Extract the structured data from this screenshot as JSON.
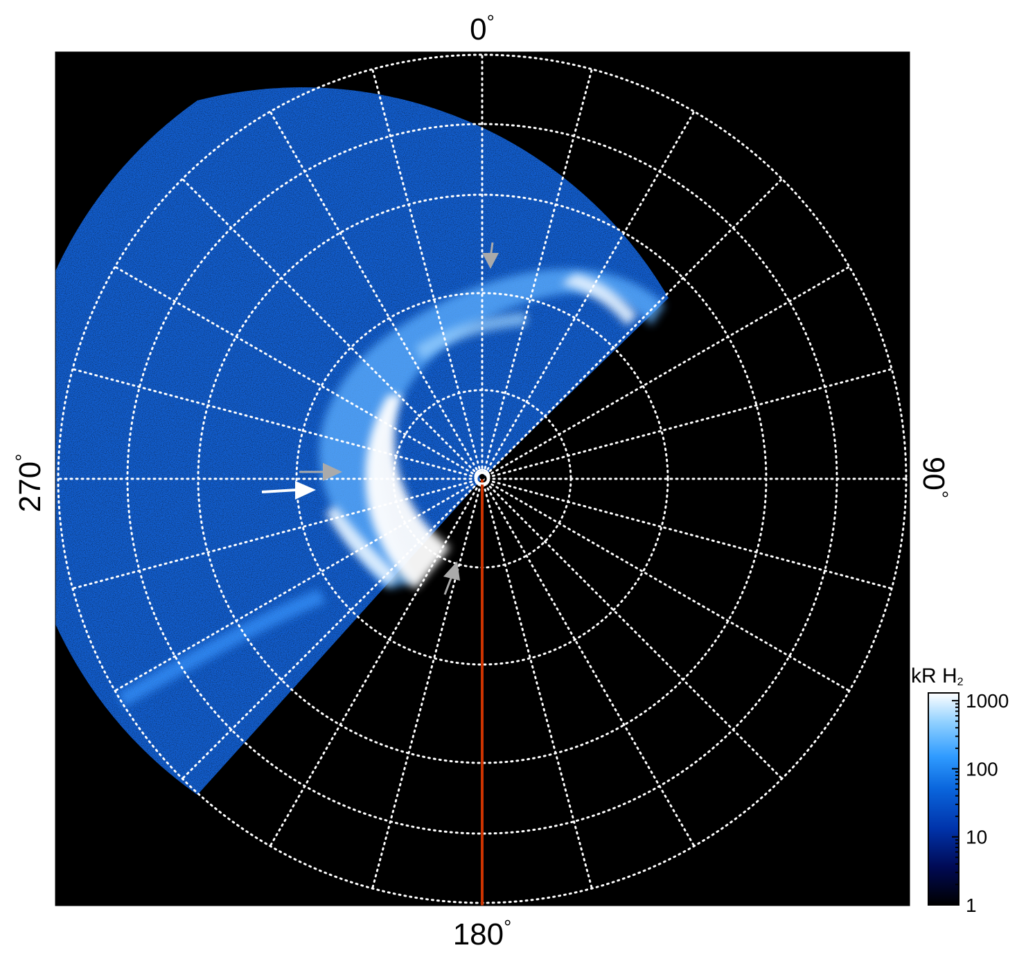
{
  "polar_labels": {
    "top": "0",
    "right": "90",
    "bottom": "180",
    "left": "270",
    "degree_symbol": "°"
  },
  "colorbar": {
    "title_main": "kR H",
    "title_sub": "2",
    "ticks": [
      "1000",
      "100",
      "10",
      "1"
    ],
    "tick_values": [
      1000,
      100,
      10,
      1
    ],
    "scale": "log",
    "colors": [
      "#000000",
      "#000a55",
      "#0033aa",
      "#0a66dd",
      "#2f9bff",
      "#8fd0ff",
      "#ffffff"
    ]
  },
  "plot": {
    "background": "#000000",
    "grid_color": "#ffffff",
    "meridian_color": "#cc3300"
  },
  "icons": {
    "arrows": [
      "arrow-icon-gray-top",
      "arrow-icon-gray-left",
      "arrow-icon-white-left",
      "arrow-icon-gray-bottom"
    ],
    "pole_marker": "pole-ring-icon"
  }
}
